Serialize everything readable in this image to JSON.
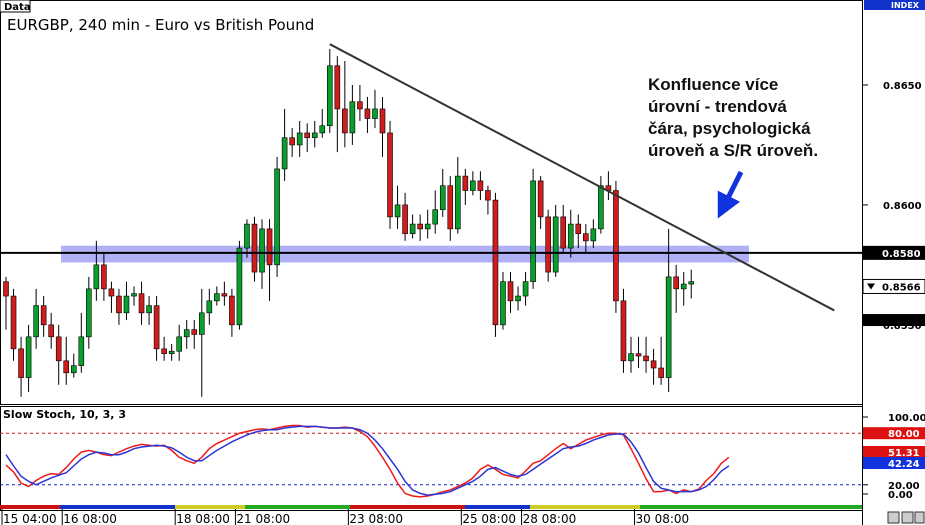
{
  "header": {
    "data_tab": "Data",
    "index_tab": "INDEX"
  },
  "chart_data": [
    {
      "type": "candlestick",
      "title": "EURGBP, 240 min - Euro vs British Pound",
      "ylim": [
        0.8517,
        0.8685
      ],
      "y_ticks": [
        "0.8650",
        "0.8600",
        "0.8580",
        "0.8566",
        "0.8550"
      ],
      "x_tick_labels": [
        {
          "label": "15 04:00",
          "bar": 0
        },
        {
          "label": "16 08:00",
          "bar": 8
        },
        {
          "label": "18 08:00",
          "bar": 23
        },
        {
          "label": "21 08:00",
          "bar": 31
        },
        {
          "label": "23 08:00",
          "bar": 46
        },
        {
          "label": "25 08:00",
          "bar": 61
        },
        {
          "label": "28 08:00",
          "bar": 69
        },
        {
          "label": "30 08:00",
          "bar": 84
        }
      ],
      "horizontal_level": {
        "value": 0.858,
        "label": "0.8580",
        "color": "#000000"
      },
      "sr_zone": {
        "from": 0.8576,
        "to": 0.8583,
        "color": "#6f6fee"
      },
      "current_price": {
        "value": 0.8566,
        "label": "0.8566"
      },
      "trendline": {
        "from": {
          "bar": 43,
          "price": 0.8667
        },
        "to": {
          "bar": 110,
          "price": 0.8556
        }
      },
      "up_color": "#0a9e2a",
      "down_color": "#cf1d1d",
      "candles": [
        [
          0.8568,
          0.8562,
          0.857,
          0.8548
        ],
        [
          0.8562,
          0.854,
          0.8565,
          0.8535
        ],
        [
          0.854,
          0.8528,
          0.8545,
          0.852
        ],
        [
          0.8528,
          0.8545,
          0.855,
          0.8522
        ],
        [
          0.8545,
          0.8558,
          0.8565,
          0.854
        ],
        [
          0.8558,
          0.855,
          0.8562,
          0.8545
        ],
        [
          0.855,
          0.8545,
          0.8555,
          0.854
        ],
        [
          0.8545,
          0.8535,
          0.855,
          0.8525
        ],
        [
          0.8535,
          0.853,
          0.8545,
          0.8525
        ],
        [
          0.853,
          0.8533,
          0.8538,
          0.8528
        ],
        [
          0.8533,
          0.8545,
          0.8555,
          0.853
        ],
        [
          0.8545,
          0.8565,
          0.857,
          0.854
        ],
        [
          0.8565,
          0.8575,
          0.8585,
          0.856
        ],
        [
          0.8575,
          0.8565,
          0.858,
          0.856
        ],
        [
          0.8565,
          0.8562,
          0.8568,
          0.8555
        ],
        [
          0.8562,
          0.8555,
          0.8565,
          0.855
        ],
        [
          0.8555,
          0.8562,
          0.8568,
          0.8552
        ],
        [
          0.8562,
          0.8563,
          0.8566,
          0.8558
        ],
        [
          0.8563,
          0.8555,
          0.8568,
          0.855
        ],
        [
          0.8555,
          0.8558,
          0.8562,
          0.855
        ],
        [
          0.8558,
          0.854,
          0.8562,
          0.8535
        ],
        [
          0.854,
          0.8538,
          0.8545,
          0.8535
        ],
        [
          0.8538,
          0.8539,
          0.8542,
          0.8535
        ],
        [
          0.8539,
          0.8545,
          0.855,
          0.8535
        ],
        [
          0.8545,
          0.8548,
          0.8552,
          0.854
        ],
        [
          0.8548,
          0.8546,
          0.8552,
          0.854
        ],
        [
          0.8546,
          0.8555,
          0.8565,
          0.852
        ],
        [
          0.8555,
          0.856,
          0.8565,
          0.855
        ],
        [
          0.856,
          0.8563,
          0.8566,
          0.8558
        ],
        [
          0.8563,
          0.8562,
          0.8568,
          0.8558
        ],
        [
          0.8562,
          0.855,
          0.8565,
          0.8545
        ],
        [
          0.855,
          0.8582,
          0.8585,
          0.8548
        ],
        [
          0.8582,
          0.8592,
          0.8594,
          0.8578
        ],
        [
          0.8592,
          0.8572,
          0.8595,
          0.8568
        ],
        [
          0.8572,
          0.859,
          0.8594,
          0.8565
        ],
        [
          0.859,
          0.8575,
          0.8594,
          0.856
        ],
        [
          0.8575,
          0.8615,
          0.862,
          0.857
        ],
        [
          0.8615,
          0.8628,
          0.864,
          0.861
        ],
        [
          0.8628,
          0.8625,
          0.8632,
          0.862
        ],
        [
          0.8625,
          0.863,
          0.8635,
          0.862
        ],
        [
          0.863,
          0.8628,
          0.8634,
          0.8622
        ],
        [
          0.8628,
          0.863,
          0.8635,
          0.8624
        ],
        [
          0.863,
          0.8633,
          0.864,
          0.8628
        ],
        [
          0.8633,
          0.8658,
          0.8665,
          0.863
        ],
        [
          0.8658,
          0.864,
          0.8662,
          0.8622
        ],
        [
          0.864,
          0.863,
          0.866,
          0.8624
        ],
        [
          0.863,
          0.8643,
          0.865,
          0.8625
        ],
        [
          0.8643,
          0.864,
          0.865,
          0.8635
        ],
        [
          0.864,
          0.8636,
          0.8645,
          0.863
        ],
        [
          0.8636,
          0.864,
          0.8648,
          0.8632
        ],
        [
          0.864,
          0.863,
          0.8645,
          0.862
        ],
        [
          0.863,
          0.8595,
          0.8635,
          0.859
        ],
        [
          0.8595,
          0.86,
          0.8608,
          0.859
        ],
        [
          0.86,
          0.8588,
          0.8605,
          0.8585
        ],
        [
          0.8588,
          0.8592,
          0.8596,
          0.8586
        ],
        [
          0.8592,
          0.859,
          0.8596,
          0.8585
        ],
        [
          0.859,
          0.8592,
          0.8598,
          0.8586
        ],
        [
          0.8592,
          0.8598,
          0.8606,
          0.8588
        ],
        [
          0.8598,
          0.8608,
          0.8615,
          0.8595
        ],
        [
          0.8608,
          0.859,
          0.8612,
          0.8585
        ],
        [
          0.859,
          0.8612,
          0.862,
          0.8588
        ],
        [
          0.8612,
          0.8606,
          0.8615,
          0.86
        ],
        [
          0.8606,
          0.861,
          0.8614,
          0.8604
        ],
        [
          0.861,
          0.8606,
          0.8614,
          0.8602
        ],
        [
          0.8606,
          0.8602,
          0.8608,
          0.8596
        ],
        [
          0.8602,
          0.855,
          0.8605,
          0.8545
        ],
        [
          0.855,
          0.8568,
          0.8572,
          0.8548
        ],
        [
          0.8568,
          0.856,
          0.8572,
          0.8555
        ],
        [
          0.856,
          0.8562,
          0.8566,
          0.8556
        ],
        [
          0.8562,
          0.8568,
          0.8572,
          0.8558
        ],
        [
          0.8568,
          0.861,
          0.8615,
          0.8565
        ],
        [
          0.861,
          0.8595,
          0.8612,
          0.859
        ],
        [
          0.8595,
          0.8572,
          0.8598,
          0.8568
        ],
        [
          0.8572,
          0.8595,
          0.86,
          0.857
        ],
        [
          0.8595,
          0.8582,
          0.86,
          0.858
        ],
        [
          0.8582,
          0.8592,
          0.8598,
          0.8578
        ],
        [
          0.8592,
          0.8588,
          0.8596,
          0.8582
        ],
        [
          0.8588,
          0.8585,
          0.8592,
          0.858
        ],
        [
          0.8585,
          0.859,
          0.8594,
          0.8582
        ],
        [
          0.859,
          0.8608,
          0.8612,
          0.8588
        ],
        [
          0.8608,
          0.8606,
          0.8614,
          0.8602
        ],
        [
          0.8606,
          0.856,
          0.861,
          0.8555
        ],
        [
          0.856,
          0.8535,
          0.8565,
          0.853
        ],
        [
          0.8535,
          0.8538,
          0.8545,
          0.853
        ],
        [
          0.8538,
          0.8537,
          0.8545,
          0.8532
        ],
        [
          0.8537,
          0.8535,
          0.8545,
          0.853
        ],
        [
          0.8535,
          0.8532,
          0.854,
          0.8525
        ],
        [
          0.8532,
          0.8528,
          0.8545,
          0.8525
        ],
        [
          0.8528,
          0.857,
          0.859,
          0.8522
        ],
        [
          0.857,
          0.8565,
          0.8575,
          0.8555
        ],
        [
          0.8565,
          0.8567,
          0.8572,
          0.8558
        ],
        [
          0.8567,
          0.8568,
          0.8573,
          0.8561
        ]
      ]
    },
    {
      "type": "line",
      "title": "Slow Stoch, 10, 3, 3",
      "ylim": [
        0,
        100
      ],
      "y_ticks": [
        "100.00",
        "80.00",
        "51.31",
        "42.24",
        "20.00",
        "0.00"
      ],
      "levels": [
        80,
        20
      ],
      "series": [
        {
          "color": "#ee1a1a",
          "values": [
            43,
            35,
            22,
            18,
            25,
            30,
            33,
            32,
            40,
            50,
            58,
            60,
            58,
            55,
            54,
            58,
            62,
            65,
            67,
            66,
            65,
            66,
            60,
            52,
            48,
            45,
            52,
            62,
            68,
            72,
            76,
            80,
            82,
            84,
            85,
            84,
            86,
            88,
            89,
            89,
            87,
            88,
            87,
            86,
            86,
            87,
            86,
            82,
            76,
            65,
            52,
            38,
            22,
            10,
            7,
            6,
            7,
            9,
            12,
            14,
            18,
            22,
            28,
            38,
            43,
            38,
            32,
            30,
            28,
            36,
            45,
            48,
            55,
            62,
            68,
            62,
            67,
            72,
            75,
            78,
            80,
            80,
            78,
            62,
            45,
            27,
            12,
            12,
            14,
            10,
            14,
            12,
            15,
            25,
            33,
            45,
            52
          ]
        },
        {
          "color": "#2b35d8",
          "values": [
            55,
            42,
            30,
            24,
            20,
            24,
            28,
            31,
            34,
            42,
            50,
            55,
            58,
            57,
            55,
            55,
            58,
            62,
            64,
            65,
            66,
            65,
            63,
            58,
            52,
            48,
            48,
            54,
            60,
            65,
            70,
            74,
            78,
            81,
            83,
            84,
            84,
            86,
            87,
            88,
            88,
            88,
            87,
            86,
            86,
            86,
            86,
            84,
            80,
            72,
            62,
            50,
            38,
            24,
            14,
            10,
            8,
            9,
            10,
            12,
            16,
            20,
            24,
            30,
            38,
            40,
            36,
            32,
            30,
            32,
            38,
            44,
            50,
            56,
            62,
            64,
            65,
            68,
            72,
            75,
            78,
            79,
            79,
            70,
            57,
            40,
            24,
            16,
            14,
            12,
            12,
            12,
            14,
            18,
            26,
            36,
            42
          ]
        }
      ]
    }
  ],
  "annotation_lines": [
    "Konfluence více",
    "úrovní - trendová",
    "čára, psychologická",
    "úroveň a S/R úroveň."
  ],
  "colors": {
    "arrow": "#1133dd",
    "label_red": "#dd1111",
    "label_blue": "#1133dd"
  }
}
